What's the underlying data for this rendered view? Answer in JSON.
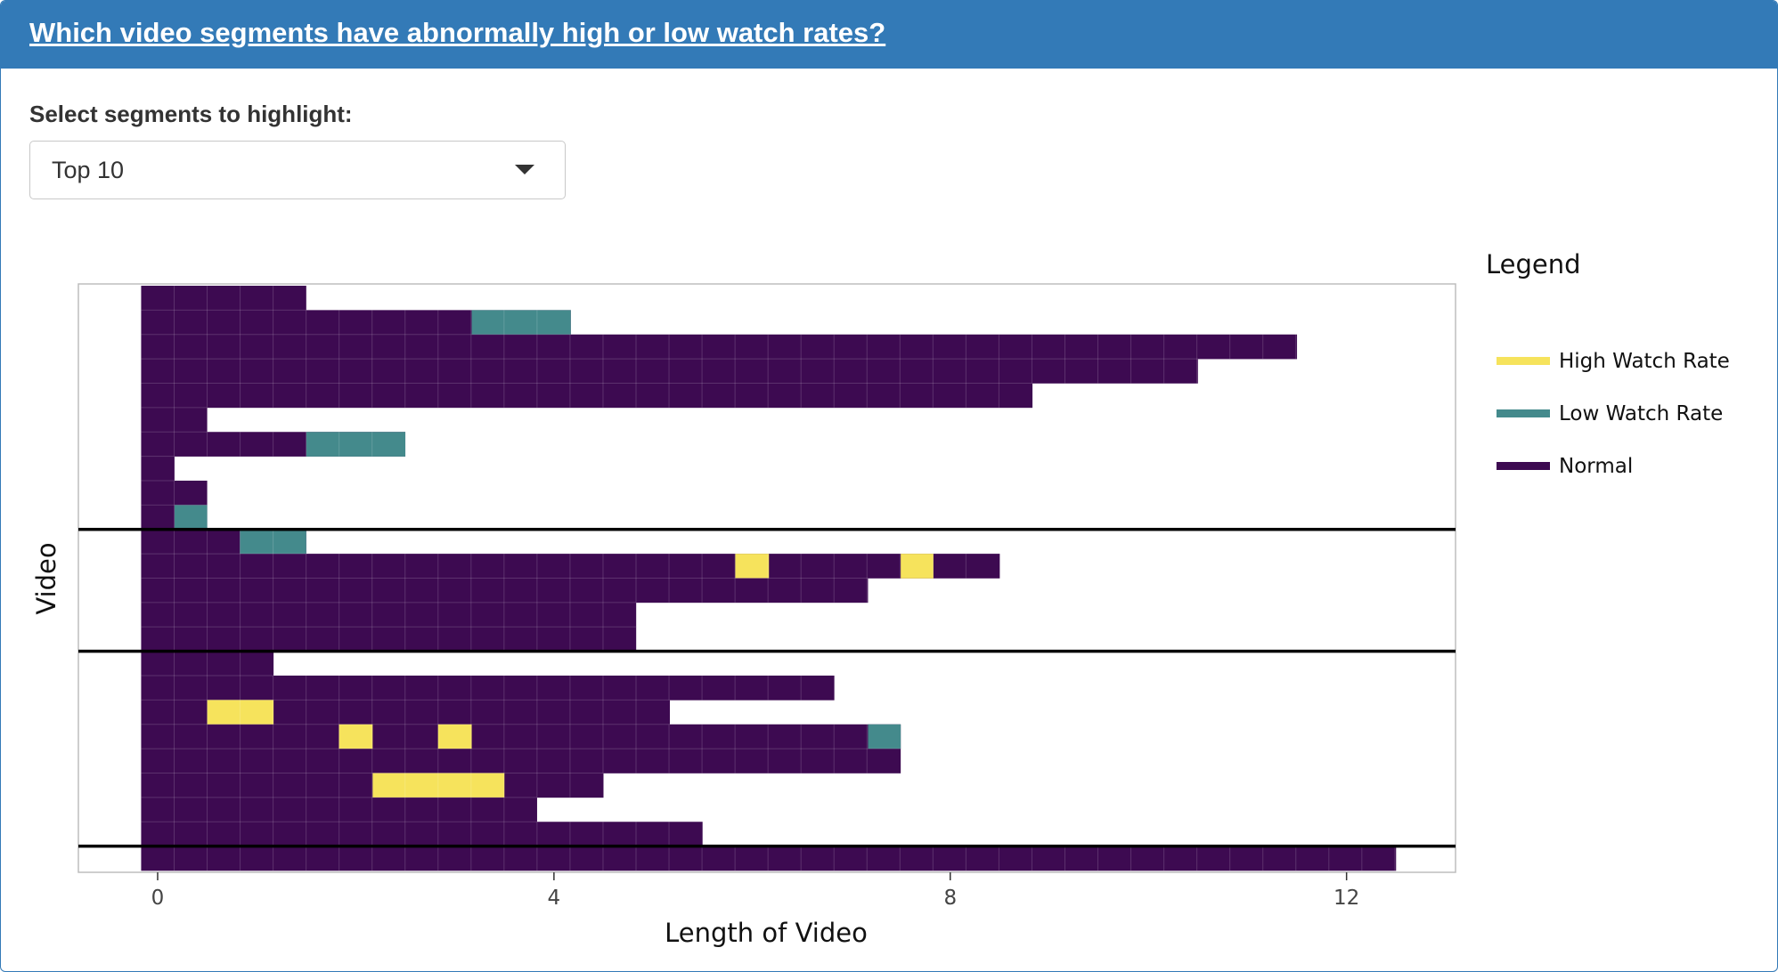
{
  "header": {
    "title": "Which video segments have abnormally high or low watch rates?"
  },
  "controls": {
    "select_label": "Select segments to highlight:",
    "select_value": "Top 10"
  },
  "colors": {
    "high": "#f6e35c",
    "low": "#448a8c",
    "normal": "#3d0a51",
    "header": "#337ab7"
  },
  "chart_data": {
    "type": "heatmap",
    "xlabel": "Length of Video",
    "ylabel": "Video",
    "x_ticks": [
      0,
      4,
      8,
      12
    ],
    "xlim": [
      -0.8,
      13.1
    ],
    "segment_width": 0.333,
    "grid": false,
    "legend_position": "right",
    "legend": {
      "title": "Legend",
      "items": [
        {
          "label": "High Watch Rate",
          "status": "high"
        },
        {
          "label": "Low Watch Rate",
          "status": "low"
        },
        {
          "label": "Normal",
          "status": "normal"
        }
      ]
    },
    "groups": [
      1,
      2,
      3,
      4
    ],
    "rows": [
      {
        "group": 1,
        "length": 1.5,
        "high": [],
        "low": []
      },
      {
        "group": 1,
        "length": 4.17,
        "high": [],
        "low": [
          [
            3.17,
            4.17
          ]
        ]
      },
      {
        "group": 1,
        "length": 11.5,
        "high": [],
        "low": []
      },
      {
        "group": 1,
        "length": 10.5,
        "high": [],
        "low": []
      },
      {
        "group": 1,
        "length": 8.83,
        "high": [],
        "low": []
      },
      {
        "group": 1,
        "length": 0.5,
        "high": [],
        "low": []
      },
      {
        "group": 1,
        "length": 2.5,
        "high": [],
        "low": [
          [
            1.5,
            2.5
          ]
        ]
      },
      {
        "group": 1,
        "length": 0.17,
        "high": [],
        "low": []
      },
      {
        "group": 1,
        "length": 0.5,
        "high": [],
        "low": []
      },
      {
        "group": 1,
        "length": 0.5,
        "high": [],
        "low": [
          [
            0.17,
            0.5
          ]
        ]
      },
      {
        "group": 2,
        "length": 1.5,
        "high": [],
        "low": [
          [
            0.83,
            1.5
          ]
        ]
      },
      {
        "group": 2,
        "length": 8.5,
        "high": [
          [
            5.83,
            6.17
          ],
          [
            7.5,
            7.83
          ]
        ],
        "low": []
      },
      {
        "group": 2,
        "length": 7.17,
        "high": [],
        "low": []
      },
      {
        "group": 2,
        "length": 4.83,
        "high": [],
        "low": []
      },
      {
        "group": 2,
        "length": 4.83,
        "high": [],
        "low": []
      },
      {
        "group": 3,
        "length": 1.17,
        "high": [],
        "low": []
      },
      {
        "group": 3,
        "length": 6.83,
        "high": [],
        "low": []
      },
      {
        "group": 3,
        "length": 5.17,
        "high": [
          [
            0.5,
            1.17
          ]
        ],
        "low": []
      },
      {
        "group": 3,
        "length": 7.5,
        "high": [
          [
            1.83,
            2.17
          ],
          [
            2.83,
            3.17
          ]
        ],
        "low": [
          [
            7.17,
            7.5
          ]
        ]
      },
      {
        "group": 3,
        "length": 7.5,
        "high": [],
        "low": []
      },
      {
        "group": 3,
        "length": 4.5,
        "high": [
          [
            2.17,
            3.5
          ]
        ],
        "low": []
      },
      {
        "group": 3,
        "length": 3.83,
        "high": [],
        "low": []
      },
      {
        "group": 3,
        "length": 5.5,
        "high": [],
        "low": []
      },
      {
        "group": 4,
        "length": 12.5,
        "high": [],
        "low": []
      }
    ]
  }
}
